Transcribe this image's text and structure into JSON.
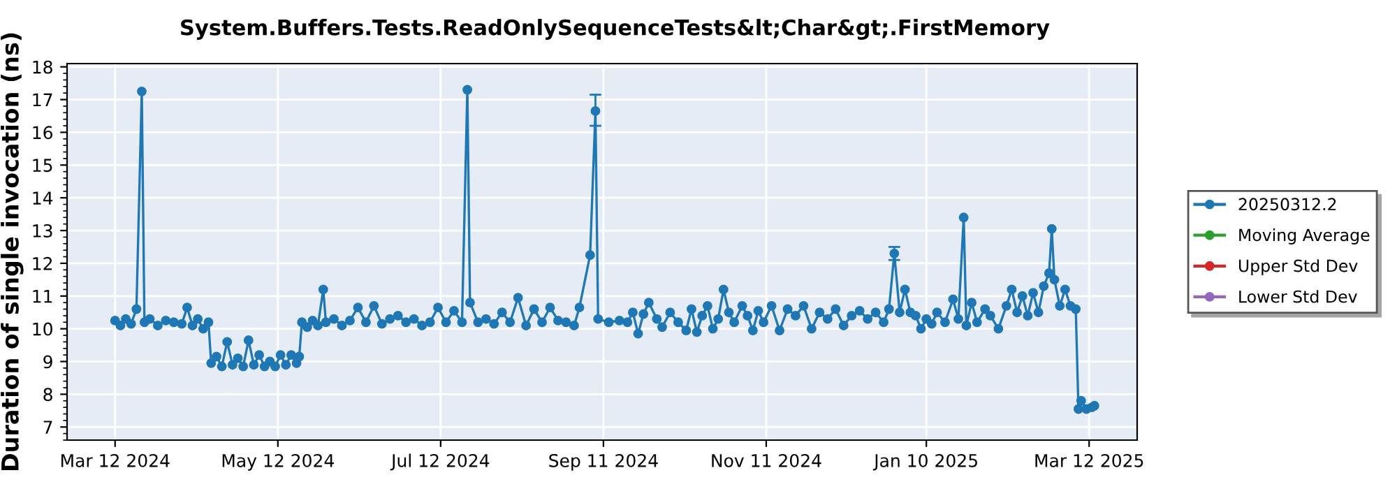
{
  "chart_data": {
    "type": "line",
    "title": "System.Buffers.Tests.ReadOnlySequenceTests&lt;Char&gt;.FirstMemory",
    "ylabel": "Duration of single invocation (ns)",
    "xlim": [
      "2024-02-23",
      "2025-03-30"
    ],
    "ylim": [
      6.6,
      18.1
    ],
    "xticks": [
      {
        "value": "2024-03-12",
        "label": "Mar 12 2024"
      },
      {
        "value": "2024-05-12",
        "label": "May 12 2024"
      },
      {
        "value": "2024-07-12",
        "label": "Jul 12 2024"
      },
      {
        "value": "2024-09-11",
        "label": "Sep 11 2024"
      },
      {
        "value": "2024-11-11",
        "label": "Nov 11 2024"
      },
      {
        "value": "2025-01-10",
        "label": "Jan 10 2025"
      },
      {
        "value": "2025-03-12",
        "label": "Mar 12 2025"
      }
    ],
    "yticks": [
      7,
      8,
      9,
      10,
      11,
      12,
      13,
      14,
      15,
      16,
      17,
      18
    ],
    "grid": true,
    "legend": "right",
    "marker": "circle",
    "line_style": "solid",
    "series": [
      {
        "name": "20250312.2",
        "color": "#1f77b4",
        "x": [
          "2024-03-12",
          "2024-03-14",
          "2024-03-16",
          "2024-03-18",
          "2024-03-20",
          "2024-03-22",
          "2024-03-23",
          "2024-03-25",
          "2024-03-28",
          "2024-03-31",
          "2024-04-03",
          "2024-04-06",
          "2024-04-08",
          "2024-04-10",
          "2024-04-12",
          "2024-04-14",
          "2024-04-16",
          "2024-04-17",
          "2024-04-19",
          "2024-04-21",
          "2024-04-23",
          "2024-04-25",
          "2024-04-27",
          "2024-04-29",
          "2024-05-01",
          "2024-05-03",
          "2024-05-05",
          "2024-05-07",
          "2024-05-09",
          "2024-05-11",
          "2024-05-13",
          "2024-05-15",
          "2024-05-17",
          "2024-05-19",
          "2024-05-20",
          "2024-05-21",
          "2024-05-23",
          "2024-05-25",
          "2024-05-27",
          "2024-05-29",
          "2024-05-30",
          "2024-06-02",
          "2024-06-05",
          "2024-06-08",
          "2024-06-11",
          "2024-06-14",
          "2024-06-17",
          "2024-06-20",
          "2024-06-23",
          "2024-06-26",
          "2024-06-29",
          "2024-07-02",
          "2024-07-05",
          "2024-07-08",
          "2024-07-11",
          "2024-07-14",
          "2024-07-17",
          "2024-07-20",
          "2024-07-22",
          "2024-07-23",
          "2024-07-26",
          "2024-07-29",
          "2024-08-01",
          "2024-08-04",
          "2024-08-07",
          "2024-08-10",
          "2024-08-13",
          "2024-08-16",
          "2024-08-19",
          "2024-08-22",
          "2024-08-25",
          "2024-08-28",
          "2024-08-31",
          "2024-09-02",
          "2024-09-06",
          "2024-09-08",
          "2024-09-09",
          "2024-09-13",
          "2024-09-17",
          "2024-09-20",
          "2024-09-22",
          "2024-09-24",
          "2024-09-26",
          "2024-09-28",
          "2024-10-01",
          "2024-10-03",
          "2024-10-06",
          "2024-10-09",
          "2024-10-12",
          "2024-10-14",
          "2024-10-16",
          "2024-10-18",
          "2024-10-20",
          "2024-10-22",
          "2024-10-24",
          "2024-10-26",
          "2024-10-28",
          "2024-10-30",
          "2024-11-02",
          "2024-11-04",
          "2024-11-06",
          "2024-11-08",
          "2024-11-10",
          "2024-11-13",
          "2024-11-16",
          "2024-11-19",
          "2024-11-22",
          "2024-11-25",
          "2024-11-28",
          "2024-12-01",
          "2024-12-04",
          "2024-12-07",
          "2024-12-10",
          "2024-12-13",
          "2024-12-16",
          "2024-12-19",
          "2024-12-22",
          "2024-12-25",
          "2024-12-27",
          "2024-12-29",
          "2024-12-31",
          "2025-01-02",
          "2025-01-04",
          "2025-01-06",
          "2025-01-08",
          "2025-01-10",
          "2025-01-12",
          "2025-01-14",
          "2025-01-17",
          "2025-01-20",
          "2025-01-22",
          "2025-01-24",
          "2025-01-25",
          "2025-01-27",
          "2025-01-29",
          "2025-02-01",
          "2025-02-03",
          "2025-02-06",
          "2025-02-09",
          "2025-02-11",
          "2025-02-13",
          "2025-02-15",
          "2025-02-17",
          "2025-02-19",
          "2025-02-21",
          "2025-02-23",
          "2025-02-25",
          "2025-02-26",
          "2025-02-27",
          "2025-03-01",
          "2025-03-03",
          "2025-03-05",
          "2025-03-07",
          "2025-03-08",
          "2025-03-09",
          "2025-03-11",
          "2025-03-13",
          "2025-03-14"
        ],
        "values": [
          10.25,
          10.1,
          10.3,
          10.15,
          10.6,
          17.25,
          10.2,
          10.3,
          10.1,
          10.25,
          10.2,
          10.15,
          10.65,
          10.1,
          10.3,
          10.0,
          10.2,
          8.95,
          9.15,
          8.85,
          9.6,
          8.9,
          9.1,
          8.85,
          9.65,
          8.9,
          9.2,
          8.85,
          9.0,
          8.85,
          9.2,
          8.9,
          9.2,
          8.95,
          9.15,
          10.2,
          10.05,
          10.25,
          10.1,
          11.2,
          10.2,
          10.3,
          10.1,
          10.25,
          10.65,
          10.2,
          10.7,
          10.15,
          10.3,
          10.4,
          10.2,
          10.3,
          10.1,
          10.2,
          10.65,
          10.2,
          10.55,
          10.2,
          17.3,
          10.8,
          10.2,
          10.3,
          10.15,
          10.5,
          10.2,
          10.95,
          10.1,
          10.6,
          10.2,
          10.65,
          10.25,
          10.2,
          10.1,
          10.65,
          12.25,
          16.65,
          10.3,
          10.2,
          10.25,
          10.2,
          10.5,
          9.85,
          10.45,
          10.8,
          10.3,
          10.05,
          10.5,
          10.2,
          9.95,
          10.6,
          9.9,
          10.4,
          10.7,
          10.0,
          10.3,
          11.2,
          10.5,
          10.2,
          10.7,
          10.4,
          9.95,
          10.55,
          10.2,
          10.7,
          9.95,
          10.6,
          10.4,
          10.7,
          10.0,
          10.5,
          10.3,
          10.6,
          10.1,
          10.4,
          10.55,
          10.3,
          10.5,
          10.2,
          10.6,
          12.3,
          10.5,
          11.2,
          10.5,
          10.4,
          10.0,
          10.3,
          10.15,
          10.5,
          10.2,
          10.9,
          10.3,
          13.4,
          10.1,
          10.8,
          10.2,
          10.6,
          10.4,
          10.0,
          10.7,
          11.2,
          10.5,
          11.0,
          10.4,
          11.1,
          10.5,
          11.3,
          11.7,
          13.05,
          11.5,
          10.7,
          11.2,
          10.7,
          10.6,
          7.55,
          7.8,
          7.55,
          7.6,
          7.65
        ],
        "errors": [
          null,
          null,
          null,
          null,
          null,
          null,
          null,
          null,
          null,
          null,
          null,
          null,
          null,
          null,
          null,
          null,
          null,
          null,
          null,
          null,
          null,
          null,
          null,
          null,
          null,
          null,
          null,
          null,
          null,
          null,
          null,
          null,
          null,
          null,
          null,
          null,
          null,
          null,
          null,
          null,
          null,
          null,
          null,
          null,
          null,
          null,
          null,
          null,
          null,
          null,
          null,
          null,
          null,
          null,
          null,
          null,
          null,
          null,
          null,
          null,
          null,
          null,
          null,
          null,
          null,
          null,
          null,
          null,
          null,
          null,
          null,
          null,
          null,
          null,
          null,
          [
            16.2,
            17.15
          ],
          null,
          null,
          null,
          null,
          null,
          null,
          null,
          null,
          null,
          null,
          null,
          null,
          null,
          null,
          null,
          null,
          null,
          null,
          null,
          null,
          null,
          null,
          null,
          null,
          null,
          null,
          null,
          null,
          null,
          null,
          null,
          null,
          null,
          null,
          null,
          null,
          null,
          null,
          null,
          null,
          null,
          null,
          null,
          [
            12.1,
            12.5
          ],
          null,
          null,
          null,
          null,
          null,
          null,
          null,
          null,
          null,
          null,
          null,
          null,
          null,
          null,
          null,
          null,
          null,
          null,
          null,
          null,
          null,
          null,
          null,
          null,
          null,
          null,
          null,
          null,
          null,
          null,
          null,
          null,
          null,
          null,
          null,
          null,
          null,
          null
        ]
      },
      {
        "name": "Moving Average",
        "color": "#2ca02c"
      },
      {
        "name": "Upper Std Dev",
        "color": "#d62728"
      },
      {
        "name": "Lower Std Dev",
        "color": "#9467bd"
      }
    ]
  }
}
